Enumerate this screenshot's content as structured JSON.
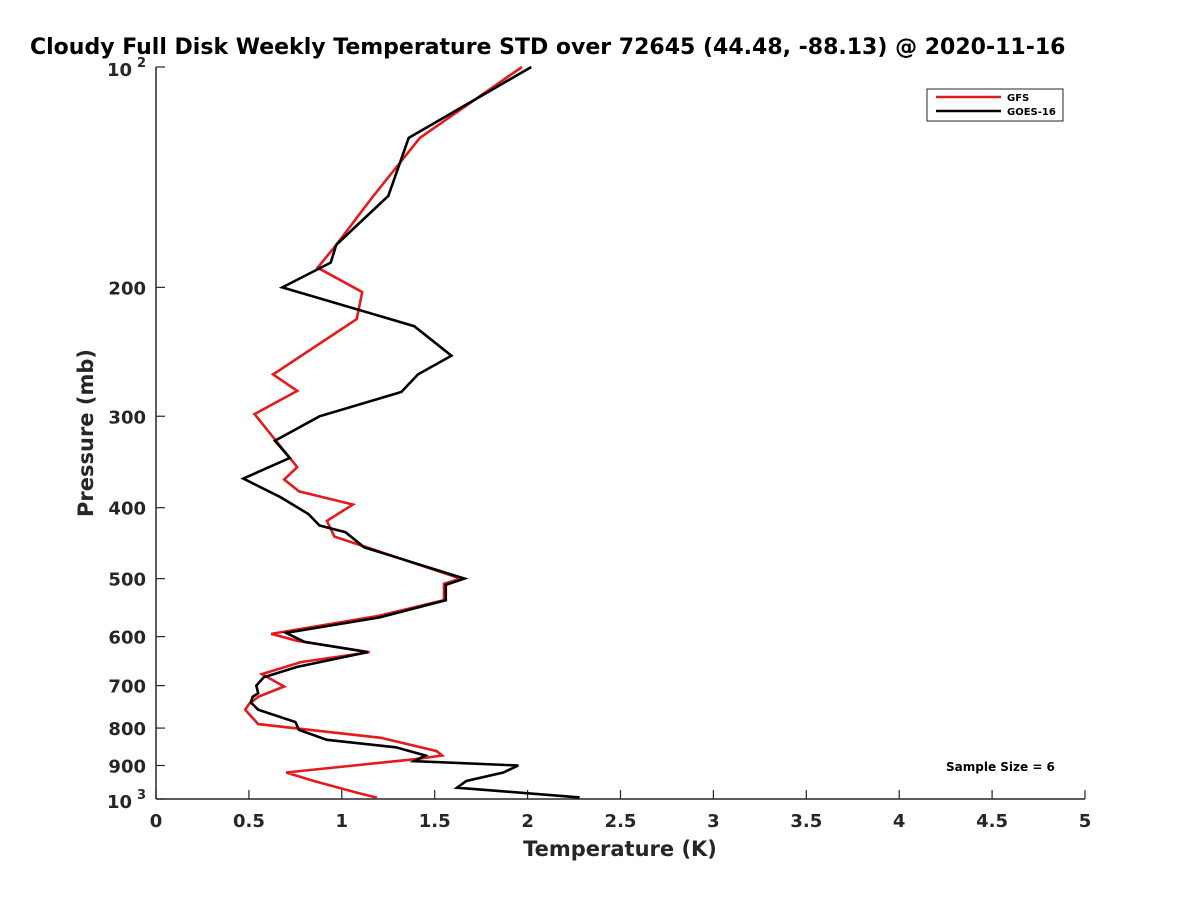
{
  "chart_data": {
    "type": "line",
    "title": "Cloudy Full Disk Weekly Temperature STD over 72645 (44.48, -88.13) @ 2020-11-16",
    "xlabel": "Temperature (K)",
    "ylabel": "Pressure (mb)",
    "xlim": [
      0,
      5
    ],
    "ylim": [
      100,
      1000
    ],
    "y_scale": "log",
    "y_reversed": true,
    "x_ticks": [
      "0",
      "0.5",
      "1",
      "1.5",
      "2",
      "2.5",
      "3",
      "3.5",
      "4",
      "4.5",
      "5"
    ],
    "y_ticks": [
      {
        "value": 100,
        "base": "10",
        "exp": "2"
      },
      {
        "value": 200,
        "label": "200"
      },
      {
        "value": 300,
        "label": "300"
      },
      {
        "value": 400,
        "label": "400"
      },
      {
        "value": 500,
        "label": "500"
      },
      {
        "value": 600,
        "label": "600"
      },
      {
        "value": 700,
        "label": "700"
      },
      {
        "value": 800,
        "label": "800"
      },
      {
        "value": 900,
        "label": "900"
      },
      {
        "value": 1000,
        "base": "10",
        "exp": "3"
      }
    ],
    "legend": {
      "position": "top-right"
    },
    "grid": false,
    "annotation": "Sample Size = 6",
    "series": [
      {
        "name": "GFS",
        "color": "#e41a1c",
        "points": [
          [
            1.97,
            100
          ],
          [
            1.42,
            125
          ],
          [
            1.17,
            150
          ],
          [
            0.97,
            175
          ],
          [
            0.87,
            188
          ],
          [
            1.11,
            203
          ],
          [
            1.08,
            221
          ],
          [
            0.63,
            263
          ],
          [
            0.76,
            277
          ],
          [
            0.53,
            298
          ],
          [
            0.76,
            352
          ],
          [
            0.69,
            366
          ],
          [
            0.77,
            380
          ],
          [
            1.06,
            396
          ],
          [
            0.92,
            417
          ],
          [
            0.96,
            438
          ],
          [
            1.64,
            500
          ],
          [
            1.55,
            508
          ],
          [
            1.55,
            535
          ],
          [
            1.2,
            562
          ],
          [
            0.62,
            595
          ],
          [
            0.76,
            608
          ],
          [
            1.15,
            630
          ],
          [
            0.78,
            650
          ],
          [
            0.57,
            675
          ],
          [
            0.69,
            702
          ],
          [
            0.55,
            725
          ],
          [
            0.5,
            742
          ],
          [
            0.48,
            755
          ],
          [
            0.55,
            790
          ],
          [
            1.21,
            825
          ],
          [
            1.51,
            860
          ],
          [
            1.54,
            872
          ],
          [
            1.4,
            882
          ],
          [
            0.7,
            920
          ],
          [
            0.85,
            945
          ],
          [
            1.08,
            980
          ],
          [
            1.19,
            996
          ]
        ]
      },
      {
        "name": "GOES-16",
        "color": "#000000",
        "points": [
          [
            2.02,
            100
          ],
          [
            1.36,
            125
          ],
          [
            1.25,
            150
          ],
          [
            0.97,
            175
          ],
          [
            0.94,
            185
          ],
          [
            0.68,
            200
          ],
          [
            1.39,
            226
          ],
          [
            1.59,
            248
          ],
          [
            1.41,
            263
          ],
          [
            1.32,
            278
          ],
          [
            0.88,
            300
          ],
          [
            0.64,
            324
          ],
          [
            0.72,
            342
          ],
          [
            0.47,
            365
          ],
          [
            0.67,
            387
          ],
          [
            0.82,
            408
          ],
          [
            0.88,
            423
          ],
          [
            1.02,
            432
          ],
          [
            1.12,
            453
          ],
          [
            1.66,
            500
          ],
          [
            1.56,
            510
          ],
          [
            1.56,
            535
          ],
          [
            1.2,
            565
          ],
          [
            0.7,
            593
          ],
          [
            0.8,
            610
          ],
          [
            1.14,
            630
          ],
          [
            0.76,
            660
          ],
          [
            0.58,
            682
          ],
          [
            0.54,
            700
          ],
          [
            0.55,
            717
          ],
          [
            0.52,
            725
          ],
          [
            0.51,
            738
          ],
          [
            0.55,
            755
          ],
          [
            0.75,
            785
          ],
          [
            0.77,
            805
          ],
          [
            0.92,
            830
          ],
          [
            1.29,
            850
          ],
          [
            1.45,
            872
          ],
          [
            1.39,
            888
          ],
          [
            1.95,
            900
          ],
          [
            1.87,
            920
          ],
          [
            1.67,
            945
          ],
          [
            1.62,
            965
          ],
          [
            2.28,
            995
          ]
        ]
      }
    ]
  }
}
